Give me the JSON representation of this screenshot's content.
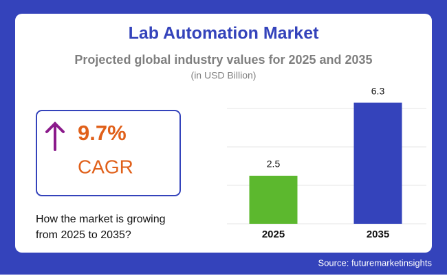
{
  "header": {
    "title": "Lab Automation Market",
    "subtitle": "Projected global industry values for 2025 and 2035",
    "unit": "(in USD Billion)"
  },
  "cagr": {
    "value": "9.7%",
    "label": "CAGR",
    "question_line1": "How the market is growing",
    "question_line2": "from 2025 to 2035?"
  },
  "source": "Source: futuremarketinsights",
  "chart_data": {
    "type": "bar",
    "categories": [
      "2025",
      "2035"
    ],
    "values": [
      2.5,
      6.3
    ],
    "colors": [
      "#5cb82e",
      "#3443bb"
    ],
    "ylim": [
      0,
      7
    ],
    "yticks": [
      0,
      2,
      4,
      6
    ],
    "grid": true
  }
}
